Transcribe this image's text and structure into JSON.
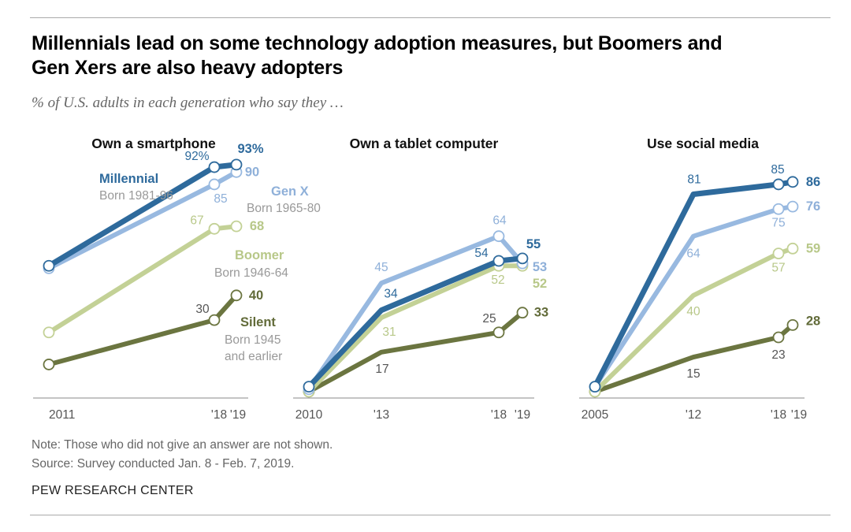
{
  "title_lines": [
    "Millennials lead on some technology adoption measures, but Boomers and",
    "Gen Xers are also heavy adopters"
  ],
  "subtitle": "% of U.S. adults in each generation who say they …",
  "note": "Note: Those who did not give an answer are not shown.",
  "source": "Source: Survey conducted Jan. 8 - Feb. 7, 2019.",
  "brand": "PEW RESEARCH CENTER",
  "colors": {
    "millennial": "#2e6a9c",
    "genx": "#98b9e0",
    "boomer": "#c3d196",
    "silent": "#6b7540",
    "millennial_label": "#2e6a9c",
    "genx_label": "#8fb0d9",
    "boomer_label": "#b8c889",
    "silent_label": "#626b39",
    "value_label": "#555555",
    "axis": "#888888"
  },
  "generation_labels": {
    "millennial": {
      "name": "Millennial",
      "born": "Born 1981-96"
    },
    "genx": {
      "name": "Gen X",
      "born": "Born 1965-80"
    },
    "boomer": {
      "name": "Boomer",
      "born": "Born 1946-64"
    },
    "silent": {
      "name": "Silent",
      "born_lines": [
        "Born 1945",
        "and earlier"
      ]
    }
  },
  "chart_data": [
    {
      "type": "line",
      "title": "Own a smartphone",
      "x": [
        2011,
        2018,
        2019
      ],
      "x_tick_labels": [
        "2011",
        "'18",
        "'19"
      ],
      "ylim": [
        0,
        100
      ],
      "series": [
        {
          "name": "Millennial",
          "key": "millennial",
          "values": [
            52,
            92,
            93
          ],
          "value_labels": [
            "",
            "92%",
            "93%"
          ]
        },
        {
          "name": "Gen X",
          "key": "genx",
          "values": [
            51,
            85,
            90
          ],
          "value_labels": [
            "",
            "85",
            "90"
          ]
        },
        {
          "name": "Boomer",
          "key": "boomer",
          "values": [
            25,
            67,
            68
          ],
          "value_labels": [
            "",
            "67",
            "68"
          ]
        },
        {
          "name": "Silent",
          "key": "silent",
          "values": [
            12,
            30,
            40
          ],
          "value_labels": [
            "",
            "30",
            "40"
          ]
        }
      ]
    },
    {
      "type": "line",
      "title": "Own a tablet computer",
      "x": [
        2010,
        2013,
        2018,
        2019
      ],
      "x_tick_labels": [
        "2010",
        "'13",
        "'18",
        "'19"
      ],
      "ylim": [
        0,
        100
      ],
      "series": [
        {
          "name": "Millennial",
          "key": "millennial",
          "values": [
            3,
            34,
            54,
            55
          ],
          "value_labels": [
            "",
            "34",
            "54",
            "55"
          ]
        },
        {
          "name": "Gen X",
          "key": "genx",
          "values": [
            2,
            45,
            64,
            53
          ],
          "value_labels": [
            "",
            "45",
            "64",
            "53"
          ]
        },
        {
          "name": "Boomer",
          "key": "boomer",
          "values": [
            1,
            31,
            52,
            52
          ],
          "value_labels": [
            "",
            "31",
            "52",
            "52"
          ]
        },
        {
          "name": "Silent",
          "key": "silent",
          "values": [
            1,
            17,
            25,
            33
          ],
          "value_labels": [
            "",
            "17",
            "25",
            "33"
          ]
        }
      ]
    },
    {
      "type": "line",
      "title": "Use social media",
      "x": [
        2005,
        2012,
        2018,
        2019
      ],
      "x_tick_labels": [
        "2005",
        "'12",
        "'18",
        "'19"
      ],
      "ylim": [
        0,
        100
      ],
      "series": [
        {
          "name": "Millennial",
          "key": "millennial",
          "values": [
            3,
            81,
            85,
            86
          ],
          "value_labels": [
            "",
            "81",
            "85",
            "86"
          ]
        },
        {
          "name": "Gen X",
          "key": "genx",
          "values": [
            3,
            64,
            75,
            76
          ],
          "value_labels": [
            "",
            "64",
            "75",
            "76"
          ]
        },
        {
          "name": "Boomer",
          "key": "boomer",
          "values": [
            1,
            40,
            57,
            59
          ],
          "value_labels": [
            "",
            "40",
            "57",
            "59"
          ]
        },
        {
          "name": "Silent",
          "key": "silent",
          "values": [
            1,
            15,
            23,
            28
          ],
          "value_labels": [
            "",
            "15",
            "23",
            "28"
          ]
        }
      ]
    }
  ]
}
